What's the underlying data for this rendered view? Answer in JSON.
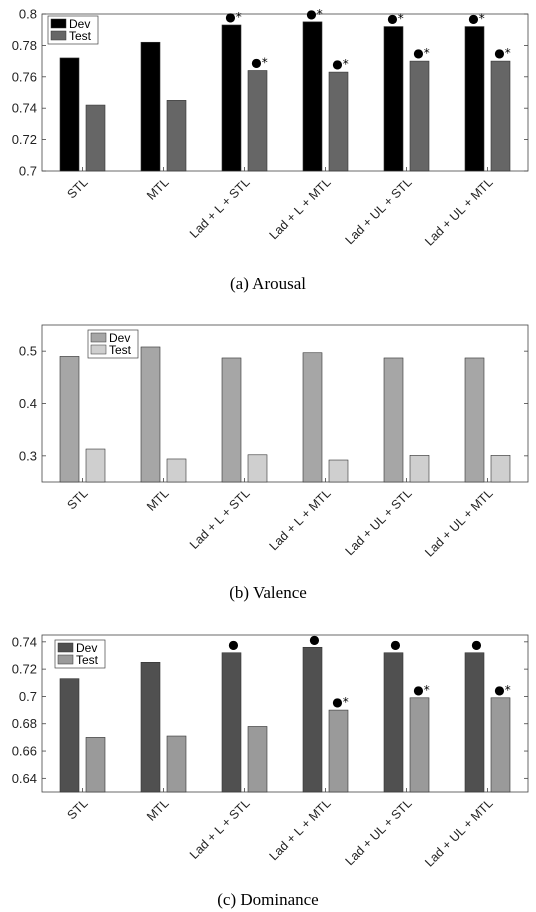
{
  "chart_data": [
    {
      "type": "bar",
      "caption": "(a)  Arousal",
      "categories": [
        "STL",
        "MTL",
        "Lad + L + STL",
        "Lad + L + MTL",
        "Lad + UL + STL",
        "Lad + UL + MTL"
      ],
      "series": [
        {
          "name": "Dev",
          "color": "#000000",
          "values": [
            0.772,
            0.782,
            0.793,
            0.795,
            0.792,
            0.792
          ],
          "markers": [
            "",
            "",
            "●*",
            "●*",
            "●*",
            "●*"
          ]
        },
        {
          "name": "Test",
          "color": "#666666",
          "values": [
            0.742,
            0.745,
            0.764,
            0.763,
            0.77,
            0.77
          ],
          "markers": [
            "",
            "",
            "●*",
            "●*",
            "●*",
            "●*"
          ]
        }
      ],
      "ylim": [
        0.7,
        0.8
      ],
      "yticks": [
        "0.7",
        "0.72",
        "0.74",
        "0.76",
        "0.78",
        "0.8"
      ],
      "legend": "top-left"
    },
    {
      "type": "bar",
      "caption": "(b)  Valence",
      "categories": [
        "STL",
        "MTL",
        "Lad + L + STL",
        "Lad + L + MTL",
        "Lad + UL + STL",
        "Lad + UL + MTL"
      ],
      "series": [
        {
          "name": "Dev",
          "color": "#a6a6a6",
          "values": [
            0.49,
            0.508,
            0.487,
            0.497,
            0.487,
            0.487
          ],
          "markers": [
            "",
            "",
            "",
            "",
            "",
            ""
          ]
        },
        {
          "name": "Test",
          "color": "#cfcfcf",
          "values": [
            0.313,
            0.294,
            0.302,
            0.292,
            0.301,
            0.301
          ],
          "markers": [
            "",
            "",
            "",
            "",
            "",
            ""
          ]
        }
      ],
      "ylim": [
        0.25,
        0.55
      ],
      "yticks": [
        "0.3",
        "0.4",
        "0.5"
      ],
      "legend": "top-left"
    },
    {
      "type": "bar",
      "caption": "(c)  Dominance",
      "categories": [
        "STL",
        "MTL",
        "Lad + L + STL",
        "Lad + L + MTL",
        "Lad + UL + STL",
        "Lad + UL + MTL"
      ],
      "series": [
        {
          "name": "Dev",
          "color": "#505050",
          "values": [
            0.713,
            0.725,
            0.732,
            0.736,
            0.732,
            0.732
          ],
          "markers": [
            "",
            "",
            "●",
            "●",
            "●",
            "●"
          ]
        },
        {
          "name": "Test",
          "color": "#9a9a9a",
          "values": [
            0.67,
            0.671,
            0.678,
            0.69,
            0.699,
            0.699
          ],
          "markers": [
            "",
            "",
            "",
            "●*",
            "●*",
            "●*"
          ]
        }
      ],
      "ylim": [
        0.63,
        0.745
      ],
      "yticks": [
        "0.64",
        "0.66",
        "0.68",
        "0.7",
        "0.72",
        "0.74"
      ],
      "legend": "top-left"
    }
  ]
}
